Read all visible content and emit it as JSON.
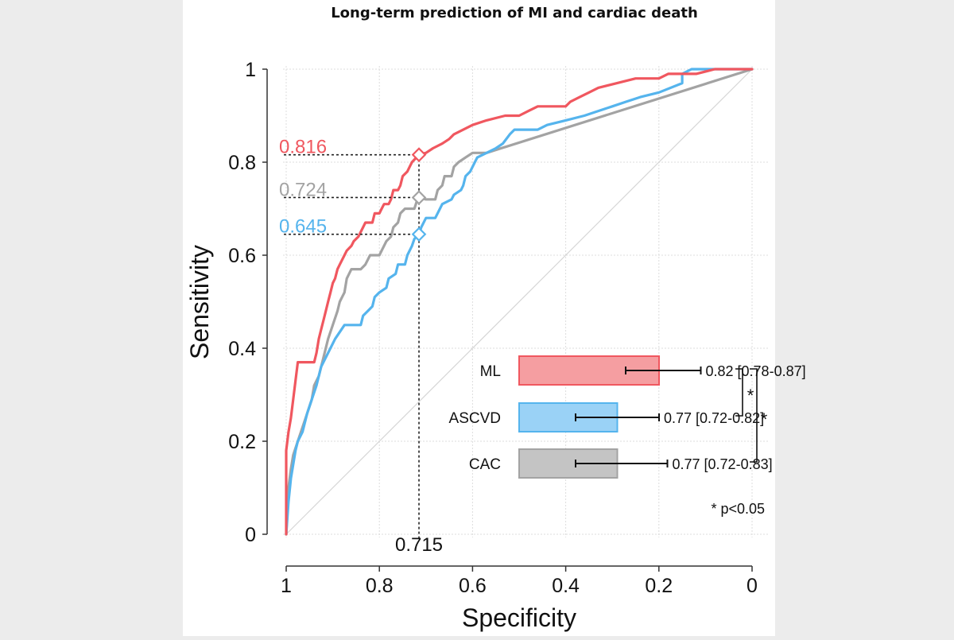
{
  "chart_data": {
    "type": "line",
    "title": "Long-term prediction of MI and cardiac death",
    "xlabel": "Specificity",
    "ylabel": "Sensitivity",
    "xlim": [
      1,
      0
    ],
    "ylim": [
      0,
      1
    ],
    "x_ticks": [
      {
        "value": 1,
        "label": "1"
      },
      {
        "value": 0.8,
        "label": "0.8"
      },
      {
        "value": 0.6,
        "label": "0.6"
      },
      {
        "value": 0.4,
        "label": "0.4"
      },
      {
        "value": 0.2,
        "label": "0.2"
      },
      {
        "value": 0,
        "label": "0"
      }
    ],
    "y_ticks": [
      {
        "value": 0,
        "label": "0"
      },
      {
        "value": 0.2,
        "label": "0.2"
      },
      {
        "value": 0.4,
        "label": "0.4"
      },
      {
        "value": 0.6,
        "label": "0.6"
      },
      {
        "value": 0.8,
        "label": "0.8"
      },
      {
        "value": 1,
        "label": "1"
      }
    ],
    "grid": true,
    "reference_line": {
      "from": [
        1,
        0
      ],
      "to": [
        0,
        1
      ]
    },
    "series": [
      {
        "name": "ML",
        "color": "#f0575f",
        "points": [
          [
            1,
            0
          ],
          [
            1,
            0.18
          ],
          [
            0.995,
            0.22
          ],
          [
            0.99,
            0.25
          ],
          [
            0.985,
            0.29
          ],
          [
            0.98,
            0.33
          ],
          [
            0.975,
            0.37
          ],
          [
            0.94,
            0.37
          ],
          [
            0.935,
            0.39
          ],
          [
            0.93,
            0.42
          ],
          [
            0.925,
            0.44
          ],
          [
            0.92,
            0.46
          ],
          [
            0.915,
            0.48
          ],
          [
            0.91,
            0.5
          ],
          [
            0.905,
            0.52
          ],
          [
            0.9,
            0.54
          ],
          [
            0.895,
            0.55
          ],
          [
            0.89,
            0.57
          ],
          [
            0.885,
            0.58
          ],
          [
            0.875,
            0.6
          ],
          [
            0.87,
            0.61
          ],
          [
            0.86,
            0.62
          ],
          [
            0.855,
            0.63
          ],
          [
            0.845,
            0.64
          ],
          [
            0.835,
            0.66
          ],
          [
            0.83,
            0.67
          ],
          [
            0.815,
            0.67
          ],
          [
            0.81,
            0.69
          ],
          [
            0.8,
            0.69
          ],
          [
            0.795,
            0.7
          ],
          [
            0.79,
            0.71
          ],
          [
            0.78,
            0.71
          ],
          [
            0.775,
            0.72
          ],
          [
            0.77,
            0.74
          ],
          [
            0.76,
            0.74
          ],
          [
            0.755,
            0.75
          ],
          [
            0.75,
            0.77
          ],
          [
            0.74,
            0.78
          ],
          [
            0.735,
            0.79
          ],
          [
            0.73,
            0.8
          ],
          [
            0.715,
            0.816
          ],
          [
            0.7,
            0.82
          ],
          [
            0.685,
            0.83
          ],
          [
            0.665,
            0.84
          ],
          [
            0.65,
            0.85
          ],
          [
            0.64,
            0.86
          ],
          [
            0.62,
            0.87
          ],
          [
            0.6,
            0.88
          ],
          [
            0.57,
            0.89
          ],
          [
            0.53,
            0.9
          ],
          [
            0.5,
            0.9
          ],
          [
            0.48,
            0.91
          ],
          [
            0.46,
            0.92
          ],
          [
            0.4,
            0.92
          ],
          [
            0.39,
            0.93
          ],
          [
            0.37,
            0.94
          ],
          [
            0.35,
            0.95
          ],
          [
            0.33,
            0.96
          ],
          [
            0.29,
            0.97
          ],
          [
            0.25,
            0.98
          ],
          [
            0.2,
            0.98
          ],
          [
            0.18,
            0.99
          ],
          [
            0.12,
            0.99
          ],
          [
            0.08,
            1
          ],
          [
            0,
            1
          ]
        ]
      },
      {
        "name": "ASCVD",
        "color": "#55b4ed",
        "points": [
          [
            1,
            0
          ],
          [
            0.995,
            0.07
          ],
          [
            0.99,
            0.12
          ],
          [
            0.985,
            0.15
          ],
          [
            0.98,
            0.18
          ],
          [
            0.975,
            0.2
          ],
          [
            0.965,
            0.22
          ],
          [
            0.955,
            0.26
          ],
          [
            0.945,
            0.29
          ],
          [
            0.935,
            0.32
          ],
          [
            0.925,
            0.36
          ],
          [
            0.91,
            0.39
          ],
          [
            0.9,
            0.41
          ],
          [
            0.895,
            0.42
          ],
          [
            0.875,
            0.45
          ],
          [
            0.84,
            0.45
          ],
          [
            0.835,
            0.47
          ],
          [
            0.825,
            0.48
          ],
          [
            0.815,
            0.49
          ],
          [
            0.81,
            0.51
          ],
          [
            0.8,
            0.52
          ],
          [
            0.785,
            0.53
          ],
          [
            0.78,
            0.55
          ],
          [
            0.765,
            0.56
          ],
          [
            0.76,
            0.58
          ],
          [
            0.745,
            0.58
          ],
          [
            0.74,
            0.6
          ],
          [
            0.73,
            0.62
          ],
          [
            0.725,
            0.635
          ],
          [
            0.715,
            0.645
          ],
          [
            0.71,
            0.66
          ],
          [
            0.7,
            0.68
          ],
          [
            0.68,
            0.68
          ],
          [
            0.67,
            0.7
          ],
          [
            0.665,
            0.71
          ],
          [
            0.645,
            0.72
          ],
          [
            0.64,
            0.73
          ],
          [
            0.625,
            0.74
          ],
          [
            0.62,
            0.75
          ],
          [
            0.615,
            0.77
          ],
          [
            0.605,
            0.78
          ],
          [
            0.6,
            0.79
          ],
          [
            0.595,
            0.8
          ],
          [
            0.59,
            0.81
          ],
          [
            0.57,
            0.82
          ],
          [
            0.55,
            0.83
          ],
          [
            0.535,
            0.84
          ],
          [
            0.52,
            0.86
          ],
          [
            0.51,
            0.87
          ],
          [
            0.46,
            0.87
          ],
          [
            0.44,
            0.88
          ],
          [
            0.4,
            0.89
          ],
          [
            0.36,
            0.9
          ],
          [
            0.33,
            0.91
          ],
          [
            0.3,
            0.92
          ],
          [
            0.27,
            0.93
          ],
          [
            0.24,
            0.94
          ],
          [
            0.2,
            0.95
          ],
          [
            0.15,
            0.97
          ],
          [
            0.15,
            0.99
          ],
          [
            0.13,
            1
          ],
          [
            0,
            1
          ]
        ]
      },
      {
        "name": "CAC",
        "color": "#a3a3a3",
        "points": [
          [
            1,
            0
          ],
          [
            0.995,
            0.1
          ],
          [
            0.99,
            0.14
          ],
          [
            0.985,
            0.17
          ],
          [
            0.975,
            0.2
          ],
          [
            0.965,
            0.23
          ],
          [
            0.955,
            0.26
          ],
          [
            0.945,
            0.29
          ],
          [
            0.94,
            0.32
          ],
          [
            0.93,
            0.34
          ],
          [
            0.92,
            0.38
          ],
          [
            0.91,
            0.42
          ],
          [
            0.9,
            0.45
          ],
          [
            0.89,
            0.48
          ],
          [
            0.885,
            0.5
          ],
          [
            0.875,
            0.52
          ],
          [
            0.87,
            0.55
          ],
          [
            0.86,
            0.57
          ],
          [
            0.84,
            0.57
          ],
          [
            0.83,
            0.58
          ],
          [
            0.82,
            0.6
          ],
          [
            0.8,
            0.6
          ],
          [
            0.795,
            0.61
          ],
          [
            0.785,
            0.63
          ],
          [
            0.775,
            0.64
          ],
          [
            0.77,
            0.66
          ],
          [
            0.76,
            0.67
          ],
          [
            0.755,
            0.69
          ],
          [
            0.745,
            0.7
          ],
          [
            0.725,
            0.7
          ],
          [
            0.72,
            0.715
          ],
          [
            0.715,
            0.724
          ],
          [
            0.7,
            0.72
          ],
          [
            0.68,
            0.72
          ],
          [
            0.675,
            0.74
          ],
          [
            0.665,
            0.75
          ],
          [
            0.66,
            0.77
          ],
          [
            0.645,
            0.77
          ],
          [
            0.64,
            0.79
          ],
          [
            0.63,
            0.8
          ],
          [
            0.615,
            0.81
          ],
          [
            0.6,
            0.82
          ],
          [
            0.57,
            0.82
          ],
          [
            0,
            1
          ]
        ]
      }
    ],
    "threshold": {
      "specificity": 0.715,
      "label": "0.715",
      "points": [
        {
          "series": "ML",
          "sensitivity": 0.816,
          "label": "0.816"
        },
        {
          "series": "CAC",
          "sensitivity": 0.724,
          "label": "0.724"
        },
        {
          "series": "ASCVD",
          "sensitivity": 0.645,
          "label": "0.645"
        }
      ]
    },
    "auc_inset": {
      "type": "bar",
      "xlim": [
        0.5,
        1
      ],
      "bars": [
        {
          "name": "ML",
          "value": 0.82,
          "ci": [
            0.78,
            0.87
          ],
          "label": "0.82 [0.78-0.87]",
          "color": "#f0575f"
        },
        {
          "name": "ASCVD",
          "value": 0.77,
          "ci": [
            0.72,
            0.82
          ],
          "label": "0.77 [0.72-0.82]",
          "color": "#55b4ed"
        },
        {
          "name": "CAC",
          "value": 0.77,
          "ci": [
            0.72,
            0.83
          ],
          "label": "0.77 [0.72-0.83]",
          "color": "#a3a3a3"
        }
      ],
      "comparisons": [
        {
          "pair": [
            "ML",
            "ASCVD"
          ],
          "mark": "*"
        },
        {
          "pair": [
            "ML",
            "CAC"
          ],
          "mark": "*"
        }
      ],
      "footnote": "* p<0.05"
    }
  }
}
